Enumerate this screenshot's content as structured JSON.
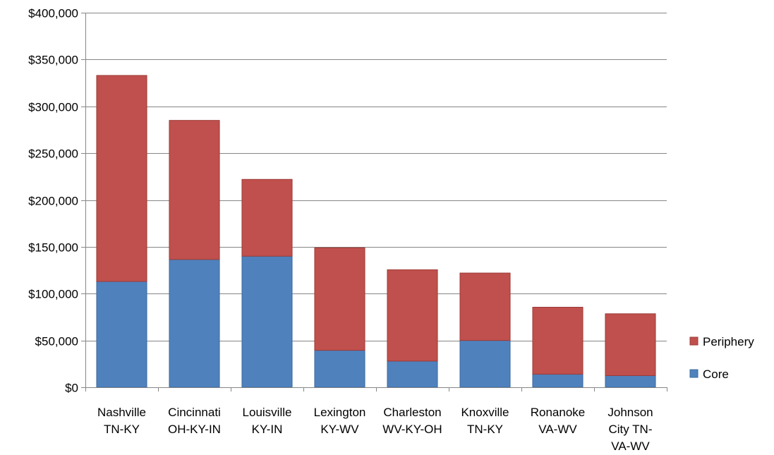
{
  "chart_data": {
    "type": "bar",
    "stacked": true,
    "title": "",
    "xlabel": "",
    "ylabel": "",
    "categories": [
      [
        "Nashville",
        "TN-KY"
      ],
      [
        "Cincinnati",
        "OH-KY-IN"
      ],
      [
        "Louisville",
        "KY-IN"
      ],
      [
        "Lexington",
        "KY-WV"
      ],
      [
        "Charleston",
        "WV-KY-OH"
      ],
      [
        "Knoxville",
        "TN-KY"
      ],
      [
        "Ronanoke",
        "VA-WV"
      ],
      [
        "Johnson",
        "City TN-",
        "VA-WV"
      ]
    ],
    "series": [
      {
        "name": "Core",
        "color": "#4f81bd",
        "values": [
          113000,
          136500,
          140000,
          39500,
          28000,
          50000,
          14000,
          12500
        ]
      },
      {
        "name": "Periphery",
        "color": "#c0504d",
        "values": [
          220000,
          148500,
          82000,
          109500,
          97500,
          72000,
          71500,
          66000
        ]
      }
    ],
    "ylim": [
      0,
      400000
    ],
    "yticks": [
      0,
      50000,
      100000,
      150000,
      200000,
      250000,
      300000,
      350000,
      400000
    ],
    "ytick_labels": [
      "$0",
      "$50,000",
      "$100,000",
      "$150,000",
      "$200,000",
      "$250,000",
      "$300,000",
      "$350,000",
      "$400,000"
    ],
    "grid": true,
    "legend": {
      "position": "right",
      "order": [
        "Periphery",
        "Core"
      ]
    }
  }
}
